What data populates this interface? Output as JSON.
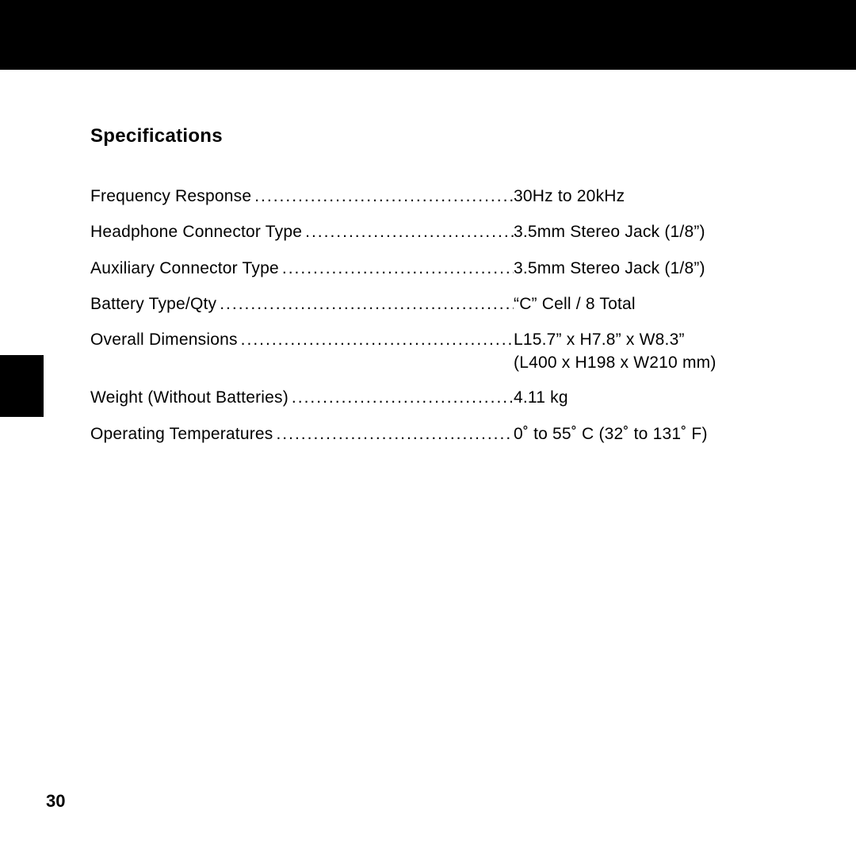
{
  "page": {
    "number": "30",
    "background_color": "#ffffff",
    "topbar_color": "#000000",
    "sidetab_color": "#000000",
    "text_color": "#000000",
    "title_fontsize": 24,
    "body_fontsize": 21
  },
  "section": {
    "title": "Specifications"
  },
  "specs": [
    {
      "label": "Frequency Response",
      "value": "30Hz to 20kHz",
      "extra": ""
    },
    {
      "label": "Headphone Connector Type",
      "value": "3.5mm Stereo Jack (1/8”)",
      "extra": ""
    },
    {
      "label": "Auxiliary Connector Type",
      "value": "3.5mm Stereo Jack (1/8”)",
      "extra": ""
    },
    {
      "label": "Battery Type/Qty",
      "value": "“C” Cell / 8 Total",
      "extra": ""
    },
    {
      "label": "Overall Dimensions",
      "value": "L15.7” x H7.8” x W8.3”",
      "extra": "(L400 x H198 x W210 mm)"
    },
    {
      "label": "Weight (Without Batteries)",
      "value": "4.11 kg",
      "extra": ""
    },
    {
      "label": "Operating Temperatures",
      "value": "0˚ to 55˚ C (32˚ to 131˚ F)",
      "extra": ""
    }
  ]
}
